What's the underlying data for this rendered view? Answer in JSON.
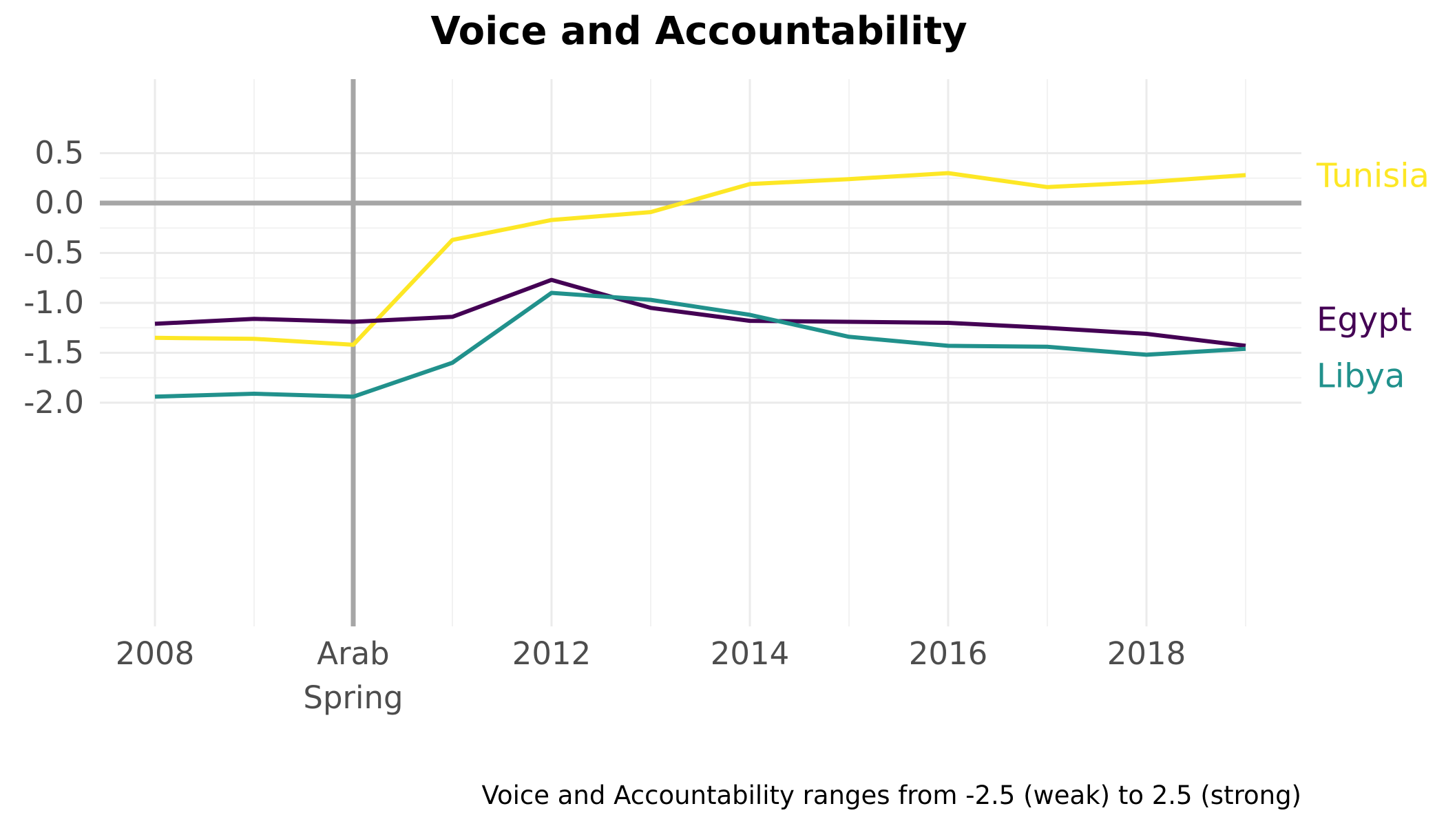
{
  "chart_data": {
    "type": "line",
    "title": "Voice and Accountability",
    "caption": "Voice and Accountability ranges from -2.5 (weak) to 2.5 (strong)",
    "xlabel": "",
    "ylabel": "",
    "xlim": [
      2007.6,
      2019.6
    ],
    "ylim": [
      -2.12,
      0.58
    ],
    "x_ticks": [
      {
        "value": 2008,
        "label": "2008"
      },
      {
        "value": 2010,
        "label": "Arab",
        "label2": "Spring"
      },
      {
        "value": 2012,
        "label": "2012"
      },
      {
        "value": 2014,
        "label": "2014"
      },
      {
        "value": 2016,
        "label": "2016"
      },
      {
        "value": 2018,
        "label": "2018"
      }
    ],
    "y_ticks": [
      {
        "value": 0.5,
        "label": "0.5"
      },
      {
        "value": 0.0,
        "label": "0.0"
      },
      {
        "value": -0.5,
        "label": "-0.5"
      },
      {
        "value": -1.0,
        "label": "-1.0"
      },
      {
        "value": -1.5,
        "label": "-1.5"
      },
      {
        "value": -2.0,
        "label": "-2.0"
      }
    ],
    "reference_lines": {
      "x": 2010,
      "y": 0,
      "color": "#a6a6a6"
    },
    "grid": true,
    "legend": "direct labels at right end of lines",
    "x": [
      2008,
      2009,
      2010,
      2011,
      2012,
      2013,
      2014,
      2015,
      2016,
      2017,
      2018,
      2019
    ],
    "series": [
      {
        "name": "Tunisia",
        "color": "#fde725",
        "values": [
          -1.35,
          -1.36,
          -1.42,
          -0.37,
          -0.17,
          -0.09,
          0.19,
          0.24,
          0.3,
          0.16,
          0.21,
          0.28
        ]
      },
      {
        "name": "Egypt",
        "color": "#440154",
        "values": [
          -1.21,
          -1.16,
          -1.19,
          -1.14,
          -0.77,
          -1.05,
          -1.18,
          -1.19,
          -1.2,
          -1.25,
          -1.31,
          -1.43
        ]
      },
      {
        "name": "Libya",
        "color": "#21918c",
        "values": [
          -1.94,
          -1.91,
          -1.94,
          -1.6,
          -0.9,
          -0.97,
          -1.12,
          -1.34,
          -1.43,
          -1.44,
          -1.52,
          -1.46
        ]
      }
    ]
  }
}
